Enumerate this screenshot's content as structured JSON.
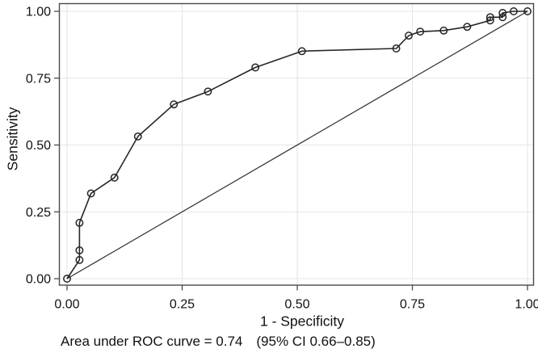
{
  "chart_data": {
    "type": "line",
    "title": "",
    "xlabel": "1 - Specificity",
    "ylabel": "Sensitivity",
    "xlim": [
      0,
      1
    ],
    "ylim": [
      0,
      1
    ],
    "grid": true,
    "legend": "none",
    "x_ticks": [
      "0.00",
      "0.25",
      "0.50",
      "0.75",
      "1.00"
    ],
    "y_ticks": [
      "0.00",
      "0.25",
      "0.50",
      "0.75",
      "1.00"
    ],
    "x_tick_values": [
      0,
      0.25,
      0.5,
      0.75,
      1
    ],
    "y_tick_values": [
      0,
      0.25,
      0.5,
      0.75,
      1
    ],
    "series": [
      {
        "name": "roc-curve",
        "marker": "open-circle",
        "points": [
          [
            0.0,
            0.0
          ],
          [
            0.027,
            0.07
          ],
          [
            0.027,
            0.106
          ],
          [
            0.027,
            0.209
          ],
          [
            0.052,
            0.319
          ],
          [
            0.103,
            0.378
          ],
          [
            0.154,
            0.532
          ],
          [
            0.232,
            0.652
          ],
          [
            0.306,
            0.7
          ],
          [
            0.409,
            0.79
          ],
          [
            0.51,
            0.851
          ],
          [
            0.715,
            0.861
          ],
          [
            0.742,
            0.909
          ],
          [
            0.767,
            0.924
          ],
          [
            0.818,
            0.928
          ],
          [
            0.869,
            0.942
          ],
          [
            0.919,
            0.966
          ],
          [
            0.919,
            0.978
          ],
          [
            0.946,
            0.978
          ],
          [
            0.946,
            0.994
          ],
          [
            0.97,
            1.0
          ],
          [
            1.0,
            1.0
          ]
        ]
      },
      {
        "name": "reference-diagonal",
        "marker": "none",
        "points": [
          [
            0.0,
            0.0
          ],
          [
            1.0,
            1.0
          ]
        ]
      }
    ],
    "annotation": "Area under ROC curve = 0.74 (95% CI 0.66–0.85)",
    "auc": 0.74,
    "ci_low": 0.66,
    "ci_high": 0.85
  },
  "caption": {
    "auc_text": "Area under ROC curve = 0.74",
    "ci_text": "(95% CI 0.66–0.85)"
  },
  "colors": {
    "curve": "#262626",
    "reference": "#333333",
    "border": "#4a4a4a",
    "tick": "#4a4a4a",
    "grid": "#e5e5e5",
    "text": "#111111",
    "background": "#ffffff"
  }
}
